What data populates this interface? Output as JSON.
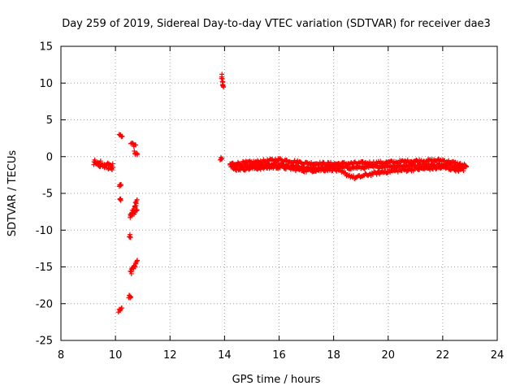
{
  "chart_data": {
    "type": "scatter",
    "title": "Day 259 of 2019, Sidereal Day-to-day VTEC variation (SDTVAR) for receiver dae3",
    "xlabel": "GPS time / hours",
    "ylabel": "SDTVAR / TECUs",
    "xlim": [
      8,
      24
    ],
    "ylim": [
      -25,
      15
    ],
    "xticks": [
      8,
      10,
      12,
      14,
      16,
      18,
      20,
      22,
      24
    ],
    "yticks": [
      -25,
      -20,
      -15,
      -10,
      -5,
      0,
      5,
      10,
      15
    ],
    "grid": true,
    "marker": "+",
    "color": "#ff0000",
    "clusters": [
      {
        "x": [
          9.2,
          9.9
        ],
        "y": [
          -1.0,
          -1.7
        ]
      },
      {
        "x": [
          9.2,
          9.9
        ],
        "y": [
          -0.6,
          -1.2
        ]
      },
      {
        "x": [
          10.15,
          10.25
        ],
        "y": [
          3.0,
          2.6
        ]
      },
      {
        "x": [
          10.55,
          10.75
        ],
        "y": [
          1.8,
          1.4
        ]
      },
      {
        "x": [
          10.7,
          10.8
        ],
        "y": [
          0.6,
          0.1
        ]
      },
      {
        "x": [
          10.15,
          10.2
        ],
        "y": [
          -3.8,
          -4.0
        ]
      },
      {
        "x": [
          10.15,
          10.2
        ],
        "y": [
          -5.6,
          -5.9
        ]
      },
      {
        "x": [
          10.55,
          10.8
        ],
        "y": [
          -8.2,
          -6.0
        ]
      },
      {
        "x": [
          10.55,
          10.8
        ],
        "y": [
          -8.0,
          -7.2
        ]
      },
      {
        "x": [
          10.5,
          10.55
        ],
        "y": [
          -10.8,
          -10.9
        ]
      },
      {
        "x": [
          10.55,
          10.8
        ],
        "y": [
          -15.8,
          -14.3
        ]
      },
      {
        "x": [
          10.5,
          10.55
        ],
        "y": [
          -19.0,
          -19.2
        ]
      },
      {
        "x": [
          10.1,
          10.25
        ],
        "y": [
          -21.0,
          -20.5
        ]
      },
      {
        "x": [
          13.9,
          13.95
        ],
        "y": [
          11.0,
          9.3
        ]
      },
      {
        "x": [
          13.85,
          13.9
        ],
        "y": [
          -0.3,
          -0.4
        ]
      }
    ],
    "series_lines": [
      {
        "x": [
          14.2,
          15.0,
          16.0,
          17.0,
          18.0,
          19.0,
          20.0,
          21.0,
          22.0,
          22.9
        ],
        "y": [
          -1.0,
          -0.8,
          -0.4,
          -0.9,
          -1.0,
          -0.9,
          -0.8,
          -0.6,
          -0.5,
          -1.3
        ]
      },
      {
        "x": [
          14.2,
          15.0,
          16.0,
          17.0,
          18.0,
          19.0,
          20.0,
          21.0,
          22.0,
          22.9
        ],
        "y": [
          -1.3,
          -1.2,
          -1.1,
          -1.6,
          -1.5,
          -1.5,
          -1.3,
          -1.2,
          -1.1,
          -1.4
        ]
      },
      {
        "x": [
          14.3,
          15.0,
          16.0,
          17.0,
          18.0,
          18.4,
          18.8,
          19.3,
          20.0,
          21.0,
          22.0,
          22.8
        ],
        "y": [
          -1.7,
          -1.6,
          -1.4,
          -1.9,
          -1.7,
          -2.3,
          -2.9,
          -2.4,
          -2.0,
          -1.7,
          -1.5,
          -1.9
        ]
      }
    ]
  }
}
